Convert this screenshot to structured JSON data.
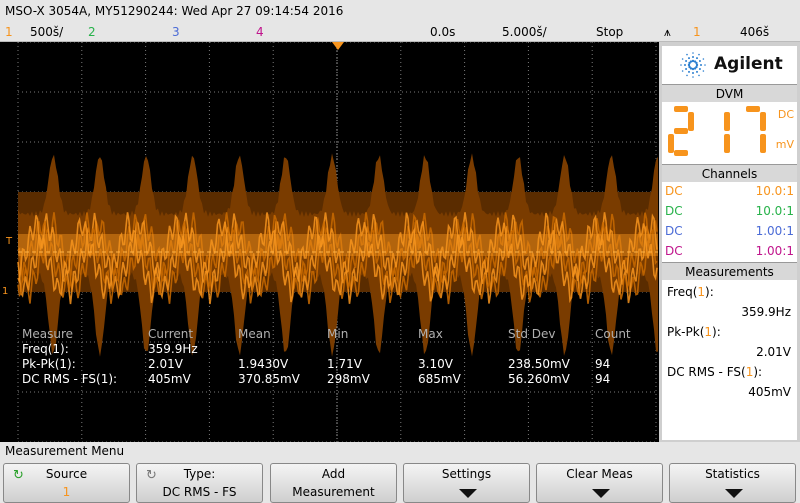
{
  "title": "MSO-X 3054A, MY51290244: Wed Apr 27 09:14:54 2016",
  "status": {
    "ch1_num": "1",
    "ch1_scale": "500š/",
    "ch2_num": "2",
    "ch3_num": "3",
    "ch4_num": "4",
    "delay": "0.0s",
    "timebase": "5.000š/",
    "run_state": "Stop",
    "trigger_icon": "⩚",
    "trigger_src": "1",
    "trigger_level": "406š"
  },
  "colors": {
    "ch1": "#f7941d",
    "ch2": "#27b24a",
    "ch3": "#4b6bd6",
    "ch4": "#c0148c"
  },
  "screen": {
    "trig_marker": "T",
    "gnd_marker": "1"
  },
  "overlay_table": {
    "headers": [
      "Measure",
      "Current",
      "Mean",
      "Min",
      "Max",
      "Std Dev",
      "Count"
    ],
    "rows": [
      [
        "Freq(1):",
        "359.9Hz",
        "",
        "",
        "",
        "",
        ""
      ],
      [
        "Pk-Pk(1):",
        "2.01V",
        "1.9430V",
        "1.71V",
        "3.10V",
        "238.50mV",
        "94"
      ],
      [
        "DC RMS - FS(1):",
        "405mV",
        "370.85mV",
        "298mV",
        "685mV",
        "56.260mV",
        "94"
      ]
    ]
  },
  "brand": {
    "name": "Agilent",
    "logo_icon": "starburst-icon"
  },
  "dvm": {
    "title": "DVM",
    "value": "217",
    "mode": "DC",
    "unit": "mV"
  },
  "channels": {
    "title": "Channels",
    "items": [
      {
        "coupling": "DC",
        "probe": "10.0:1"
      },
      {
        "coupling": "DC",
        "probe": "10.0:1"
      },
      {
        "coupling": "DC",
        "probe": "1.00:1"
      },
      {
        "coupling": "DC",
        "probe": "1.00:1"
      }
    ]
  },
  "measurements": {
    "title": "Measurements",
    "items": [
      {
        "label": "Freq(",
        "ch": "1",
        "end": "):",
        "value": "359.9Hz"
      },
      {
        "label": "Pk-Pk(",
        "ch": "1",
        "end": "):",
        "value": "2.01V"
      },
      {
        "label": "DC RMS - FS(",
        "ch": "1",
        "end": "):",
        "value": "405mV"
      }
    ]
  },
  "menu": {
    "title": "Measurement Menu",
    "softkeys": [
      {
        "line1": "Source",
        "line2": "1"
      },
      {
        "line1": "Type:",
        "line2": "DC RMS - FS"
      },
      {
        "line1": "Add",
        "line2": "Measurement"
      },
      {
        "line1": "Settings",
        "line2": ""
      },
      {
        "line1": "Clear Meas",
        "line2": ""
      },
      {
        "line1": "Statistics",
        "line2": ""
      }
    ]
  }
}
